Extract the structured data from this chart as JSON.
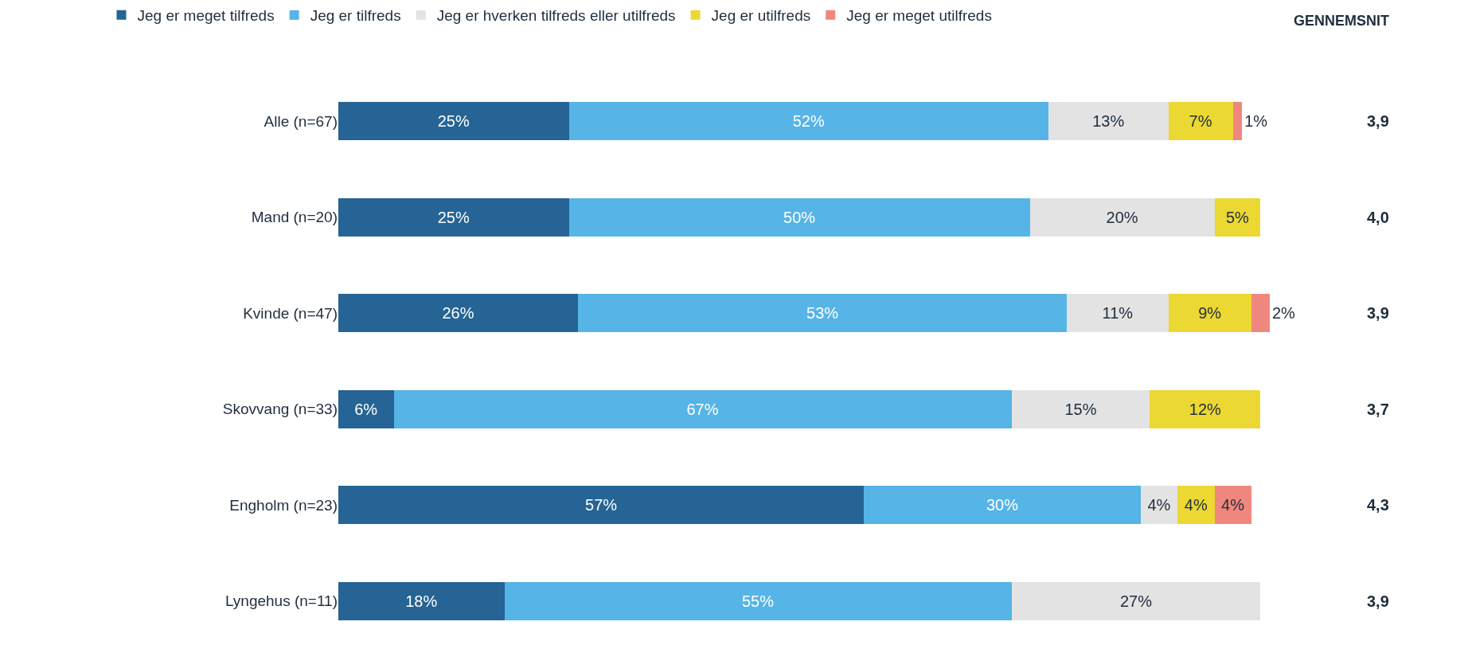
{
  "chart_data": {
    "type": "bar",
    "orientation": "horizontal",
    "stacked": true,
    "legend": "top",
    "tick_labels": "y",
    "categories": [
      "Alle (n=67)",
      "Mand (n=20)",
      "Kvinde (n=47)",
      "Skovvang (n=33)",
      "Engholm (n=23)",
      "Lyngehus (n=11)"
    ],
    "series": [
      {
        "name": "Jeg er meget tilfreds",
        "color": "#256494",
        "values": [
          25,
          25,
          26,
          6,
          57,
          18
        ],
        "value_labels": [
          "25%",
          "25%",
          "26%",
          "6%",
          "57%",
          "18%"
        ]
      },
      {
        "name": "Jeg er tilfreds",
        "color": "#56b4e7",
        "values": [
          52,
          50,
          53,
          67,
          30,
          55
        ],
        "value_labels": [
          "52%",
          "50%",
          "53%",
          "67%",
          "30%",
          "55%"
        ]
      },
      {
        "name": "Jeg er hverken tilfreds eller utilfreds",
        "color": "#e3e3e3",
        "values": [
          13,
          20,
          11,
          15,
          4,
          27
        ],
        "value_labels": [
          "13%",
          "20%",
          "11%",
          "15%",
          "4%",
          "27%"
        ]
      },
      {
        "name": "Jeg er utilfreds",
        "color": "#ebd833",
        "values": [
          7,
          5,
          9,
          12,
          4,
          null
        ],
        "value_labels": [
          "7%",
          "5%",
          "9%",
          "12%",
          "4%",
          null
        ]
      },
      {
        "name": "Jeg er meget utilfreds",
        "color": "#f0877e",
        "values": [
          1,
          null,
          2,
          null,
          4,
          null
        ],
        "value_labels": [
          "1%",
          null,
          "2%",
          null,
          "4%",
          null
        ]
      }
    ],
    "annotations": [
      "GENNEMSNIT",
      "3,9",
      "4,0",
      "3,9",
      "3,7",
      "4,3",
      "3,9"
    ]
  }
}
